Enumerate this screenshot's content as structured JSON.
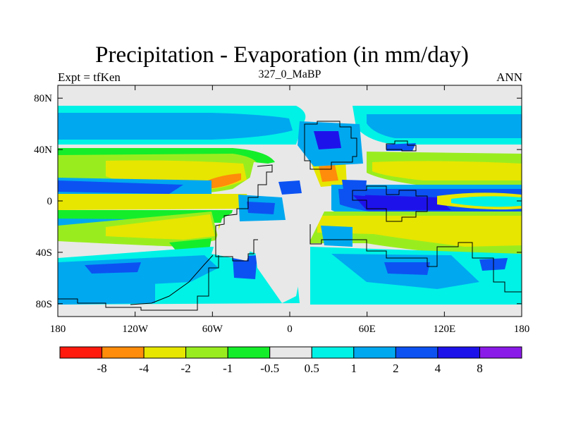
{
  "chart_data": {
    "type": "heatmap",
    "title": "Precipitation - Evaporation (in mm/day)",
    "subtitle": "327_0_MaBP",
    "left_label": "Expt = tfKen",
    "right_label": "ANN",
    "x_ticks": [
      {
        "value": -180,
        "label": "180"
      },
      {
        "value": -120,
        "label": "120W"
      },
      {
        "value": -60,
        "label": "60W"
      },
      {
        "value": 0,
        "label": "0"
      },
      {
        "value": 60,
        "label": "60E"
      },
      {
        "value": 120,
        "label": "120E"
      },
      {
        "value": 180,
        "label": "180"
      }
    ],
    "y_ticks": [
      {
        "value": 80,
        "label": "80N"
      },
      {
        "value": 40,
        "label": "40N"
      },
      {
        "value": 0,
        "label": "0"
      },
      {
        "value": -40,
        "label": "40S"
      },
      {
        "value": -80,
        "label": "80S"
      }
    ],
    "xlim": [
      -180,
      180
    ],
    "ylim": [
      -90,
      90
    ],
    "colorbar": {
      "colors": [
        "#ff1a0d",
        "#ff8c0a",
        "#e6e600",
        "#99ed1f",
        "#14ee2a",
        "#e8e8e8",
        "#00f2e6",
        "#00a8f0",
        "#0c52f2",
        "#1e12ea",
        "#8a1ae8"
      ],
      "labels": [
        "-8",
        "-4",
        "-2",
        "-1",
        "-0.5",
        "0.5",
        "1",
        "2",
        "4",
        "8"
      ]
    },
    "background_color": "#e8e8e8",
    "fields": {
      "cyan_regions": "#00f2e6",
      "light_blue_regions": "#00a8f0",
      "blue_regions": "#0c52f2",
      "dark_blue_regions": "#1e12ea",
      "yellow_regions": "#e6e600",
      "lime_regions": "#99ed1f",
      "green_regions": "#14ee2a",
      "orange_regions": "#ff8c0a"
    }
  }
}
